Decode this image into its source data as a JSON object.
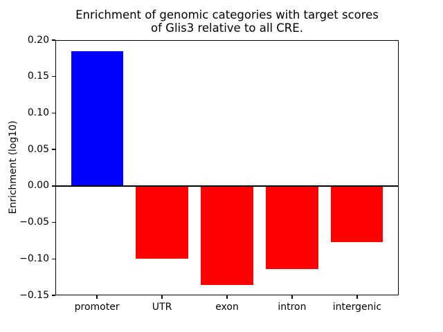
{
  "figure": {
    "title_line1": "Enrichment of genomic categories with target scores",
    "title_line2": "of Glis3 relative to all CRE.",
    "ylabel": "Enrichment (log10)",
    "background": "#ffffff",
    "axis_color": "#000000"
  },
  "chart_data": {
    "type": "bar",
    "title": "Enrichment of genomic categories with target scores of Glis3 relative to all CRE.",
    "xlabel": "",
    "ylabel": "Enrichment (log10)",
    "categories": [
      "promoter",
      "UTR",
      "exon",
      "intron",
      "intergenic"
    ],
    "values": [
      0.185,
      -0.1,
      -0.136,
      -0.114,
      -0.077
    ],
    "bar_colors": [
      "#0000ff",
      "#ff0000",
      "#ff0000",
      "#ff0000",
      "#ff0000"
    ],
    "positive_color": "#0000ff",
    "negative_color": "#ff0000",
    "ylim": [
      -0.15,
      0.2
    ],
    "yticks": [
      0.2,
      0.15,
      0.1,
      0.05,
      0.0,
      -0.05,
      -0.1,
      -0.15
    ],
    "ytick_labels": [
      "0.20",
      "0.15",
      "0.10",
      "0.05",
      "0.00",
      "−0.05",
      "−0.10",
      "−0.15"
    ],
    "grid": false,
    "legend": false,
    "zero_line": true
  }
}
